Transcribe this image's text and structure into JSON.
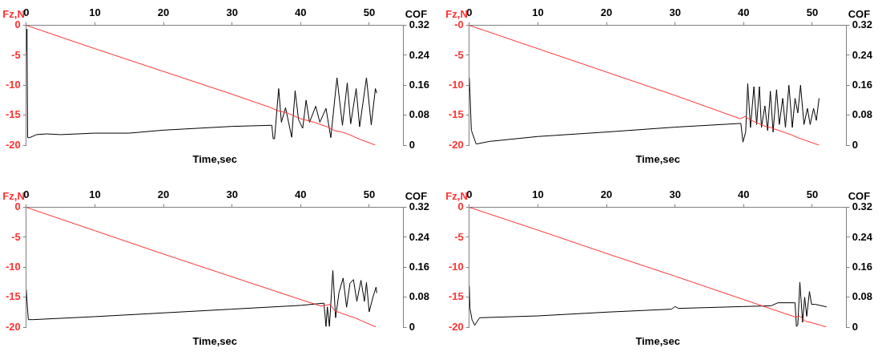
{
  "chart_data": [
    {
      "type": "line",
      "xlabel": "Time,sec",
      "ylabel": "Fz,N",
      "y2label": "COF",
      "xlim": [
        0,
        55
      ],
      "xticks": [
        0,
        10,
        20,
        30,
        40,
        50
      ],
      "ylim": [
        -20,
        0
      ],
      "yticks": [
        0,
        -5,
        -10,
        -15,
        -20
      ],
      "y2lim": [
        0,
        0.32
      ],
      "y2ticks": [
        0,
        0.08,
        0.16,
        0.24,
        0.32
      ],
      "grid": false,
      "legend": false,
      "marker": "none",
      "line_style": "solid",
      "series": [
        {
          "color": "#ff3030",
          "axis": "y",
          "x": [
            0,
            10,
            20,
            30,
            35.8,
            36.5,
            38,
            40,
            42,
            44,
            45,
            46,
            47,
            48,
            49,
            50,
            50.9
          ],
          "values": [
            0,
            -3.9,
            -7.7,
            -11.5,
            -13.8,
            -14.2,
            -14.6,
            -15.6,
            -16.2,
            -17,
            -17.6,
            -17.8,
            -18.2,
            -18.7,
            -19.2,
            -19.6,
            -20
          ]
        },
        {
          "color": "#000000",
          "axis": "y2",
          "x": [
            0,
            0.1,
            0.2,
            0.5,
            1.5,
            3,
            5,
            10,
            15,
            20,
            25,
            30,
            35.8,
            36.0,
            36.2,
            36.8,
            37.2,
            37.8,
            38.7,
            39.2,
            39.7,
            40.3,
            40.8,
            41.3,
            42.2,
            42.8,
            43.7,
            44.4,
            45.3,
            46.1,
            46.8,
            47.3,
            48.1,
            48.6,
            49.6,
            50.3,
            50.9,
            51.1
          ],
          "values": [
            0.25,
            0.31,
            0.02,
            0.02,
            0.028,
            0.03,
            0.028,
            0.032,
            0.032,
            0.04,
            0.045,
            0.05,
            0.053,
            0.017,
            0.017,
            0.151,
            0.061,
            0.1,
            0.021,
            0.145,
            0.068,
            0.045,
            0.12,
            0.061,
            0.104,
            0.061,
            0.098,
            0.02,
            0.18,
            0.053,
            0.166,
            0.057,
            0.151,
            0.049,
            0.18,
            0.054,
            0.151,
            0.139
          ]
        }
      ]
    },
    {
      "type": "line",
      "xlabel": "Time,sec",
      "ylabel": "Fz,N",
      "y2label": "COF",
      "xlim": [
        0,
        55
      ],
      "xticks": [
        0,
        10,
        20,
        30,
        40,
        50
      ],
      "ylim": [
        -20,
        0
      ],
      "yticks": [
        {
          "value": 0,
          "label": "-0"
        },
        -5,
        -10,
        -15,
        -20
      ],
      "y2lim": [
        0,
        0.32
      ],
      "y2ticks": [
        0,
        0.08,
        0.16,
        0.24,
        0.32
      ],
      "grid": false,
      "legend": false,
      "marker": "none",
      "line_style": "solid",
      "series": [
        {
          "color": "#ff3030",
          "axis": "y",
          "x": [
            0,
            10,
            20,
            30,
            39.5,
            40.2,
            41,
            42,
            43,
            44,
            45,
            46,
            47,
            48,
            49,
            50,
            51
          ],
          "values": [
            0,
            -3.9,
            -7.8,
            -11.7,
            -15.6,
            -15.2,
            -15.8,
            -16.3,
            -16.8,
            -17.1,
            -17.5,
            -17.9,
            -18.3,
            -18.8,
            -19.2,
            -19.6,
            -20
          ]
        },
        {
          "color": "#000000",
          "axis": "y2",
          "x": [
            0,
            0.1,
            0.3,
            1,
            3,
            10,
            20,
            30,
            39.6,
            39.9,
            40.3,
            40.6,
            41.0,
            41.5,
            41.9,
            42.3,
            42.6,
            43.1,
            43.5,
            43.9,
            44.3,
            44.8,
            45.2,
            45.7,
            46.1,
            46.6,
            47.1,
            47.5,
            47.9,
            48.3,
            48.8,
            49.3,
            49.7,
            50.2,
            50.6,
            51.0
          ],
          "values": [
            0.18,
            0.14,
            0.04,
            0.003,
            0.01,
            0.023,
            0.035,
            0.048,
            0.058,
            0.008,
            0.035,
            0.164,
            0.047,
            0.156,
            0.055,
            0.156,
            0.047,
            0.105,
            0.039,
            0.144,
            0.035,
            0.148,
            0.055,
            0.125,
            0.047,
            0.16,
            0.047,
            0.125,
            0.086,
            0.16,
            0.055,
            0.098,
            0.055,
            0.098,
            0.066,
            0.125
          ]
        }
      ]
    },
    {
      "type": "line",
      "xlabel": "Time,sec",
      "ylabel": "Fz,N",
      "y2label": "COF",
      "xlim": [
        0,
        55
      ],
      "xticks": [
        0,
        10,
        20,
        30,
        40,
        50
      ],
      "ylim": [
        -20,
        0
      ],
      "yticks": [
        0,
        -5,
        -10,
        -15,
        -20
      ],
      "y2lim": [
        0,
        0.32
      ],
      "y2ticks": [
        0,
        0.08,
        0.16,
        0.24,
        0.32
      ],
      "grid": false,
      "legend": false,
      "marker": "none",
      "line_style": "solid",
      "series": [
        {
          "color": "#ff3030",
          "axis": "y",
          "x": [
            0,
            10,
            20,
            30,
            40,
            43,
            44.3,
            45,
            46,
            47,
            48,
            49,
            50,
            51
          ],
          "values": [
            0,
            -3.9,
            -7.8,
            -11.6,
            -15.4,
            -16.5,
            -16.2,
            -17.3,
            -17.7,
            -18.1,
            -18.5,
            -19,
            -19.5,
            -20
          ]
        },
        {
          "color": "#000000",
          "axis": "y2",
          "x": [
            0,
            0.1,
            0.3,
            1,
            10,
            20,
            30,
            40,
            43.4,
            43.7,
            43.9,
            44.2,
            44.7,
            45.1,
            45.6,
            46.2,
            46.7,
            47.2,
            47.7,
            48.2,
            48.8,
            49.3,
            49.6,
            50.0,
            50.5,
            51.0,
            51.1
          ],
          "values": [
            0.1,
            0.07,
            0.02,
            0.02,
            0.028,
            0.038,
            0.048,
            0.058,
            0.064,
            0.002,
            0.054,
            0.002,
            0.151,
            0.025,
            0.093,
            0.131,
            0.053,
            0.117,
            0.127,
            0.069,
            0.125,
            0.069,
            0.119,
            0.041,
            0.077,
            0.107,
            0.091
          ]
        }
      ]
    },
    {
      "type": "line",
      "xlabel": "Time,sec",
      "ylabel": "Fz,N",
      "y2label": "COF",
      "xlim": [
        0,
        55
      ],
      "xticks": [
        0,
        10,
        20,
        30,
        40,
        50
      ],
      "ylim": [
        -20,
        0
      ],
      "yticks": [
        0,
        -5,
        -10,
        -15,
        -20
      ],
      "y2lim": [
        0,
        0.32
      ],
      "y2ticks": [
        0,
        0.08,
        0.16,
        0.24,
        0.32
      ],
      "grid": false,
      "legend": false,
      "marker": "none",
      "line_style": "solid",
      "series": [
        {
          "color": "#ff3030",
          "axis": "y",
          "x": [
            0,
            10,
            20,
            30,
            40,
            47.5,
            48.2,
            49,
            50,
            51,
            52.1
          ],
          "values": [
            0,
            -3.8,
            -7.7,
            -11.5,
            -15.4,
            -18.3,
            -18.2,
            -19,
            -19.3,
            -19.6,
            -20
          ]
        },
        {
          "color": "#000000",
          "axis": "y2",
          "x": [
            0,
            0.1,
            0.4,
            0.8,
            1.5,
            10,
            20,
            29.5,
            30,
            30.5,
            40,
            44,
            45,
            47.5,
            47.7,
            47.9,
            48.2,
            48.6,
            48.9,
            49.2,
            49.6,
            49.9,
            50.4,
            52.1
          ],
          "values": [
            0.11,
            0.05,
            0.02,
            0.005,
            0.025,
            0.03,
            0.04,
            0.048,
            0.055,
            0.05,
            0.055,
            0.057,
            0.065,
            0.065,
            0.002,
            0.005,
            0.12,
            0.013,
            0.08,
            0.029,
            0.095,
            0.061,
            0.061,
            0.054
          ]
        }
      ]
    }
  ]
}
